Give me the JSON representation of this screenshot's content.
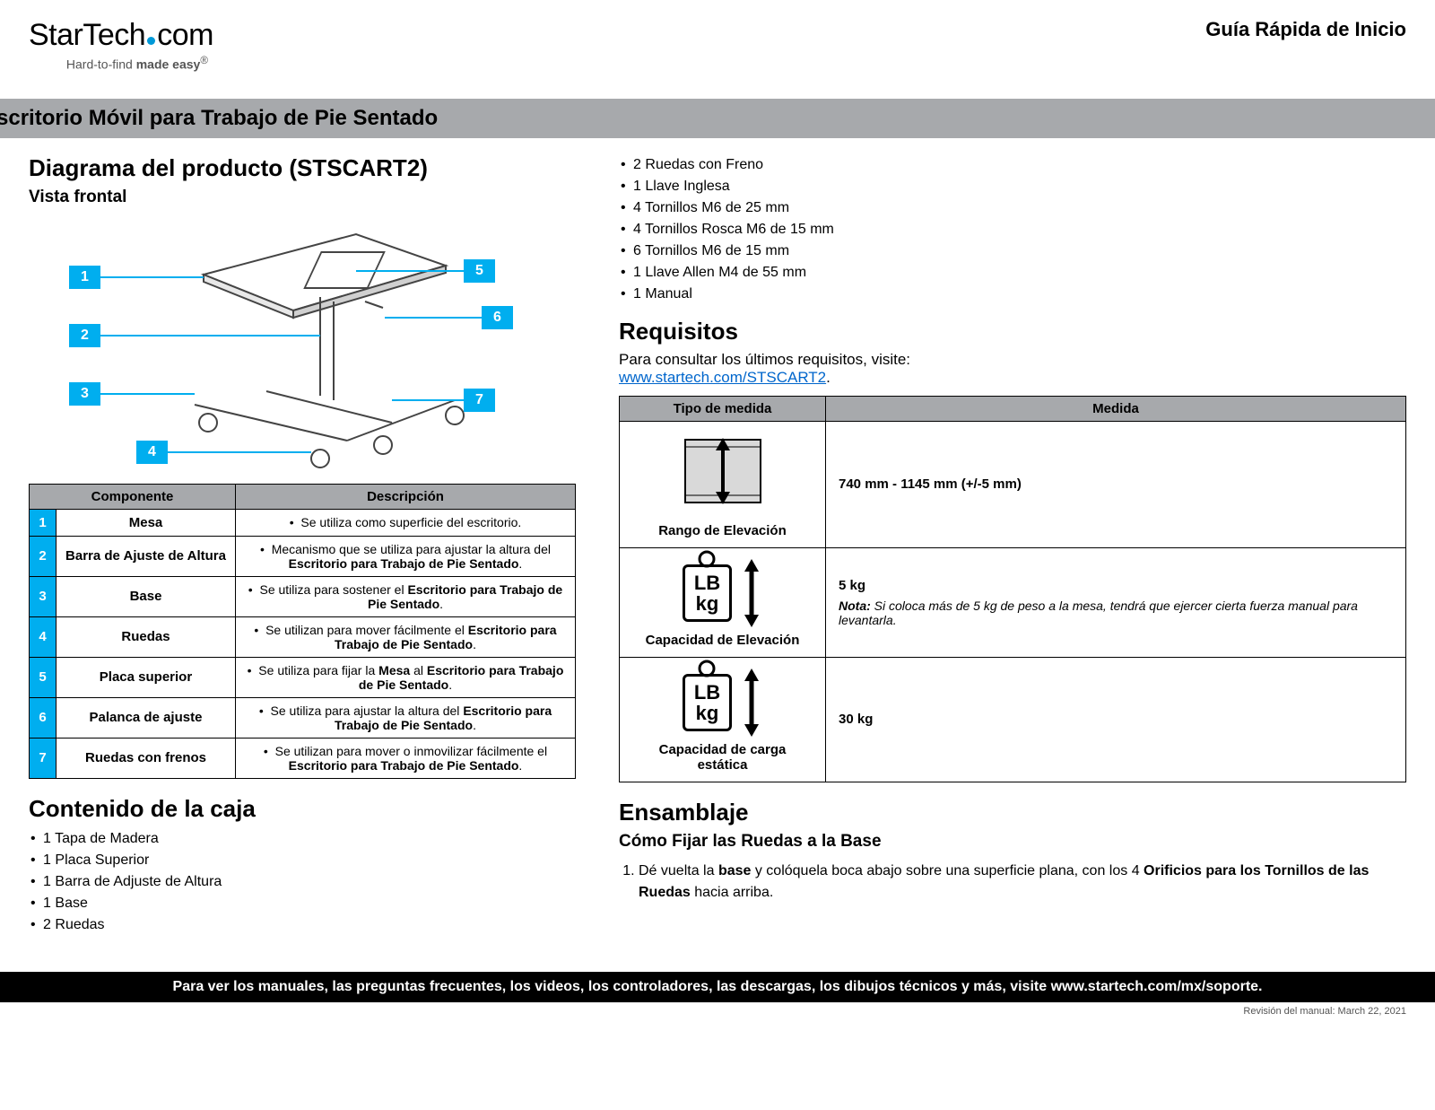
{
  "colors": {
    "accent": "#00aeef",
    "gray_bar": "#a7a9ac",
    "link": "#0066cc",
    "text": "#000000",
    "white": "#ffffff"
  },
  "header": {
    "logo_text_a": "StarTech",
    "logo_text_b": "com",
    "tagline_a": "Hard-to-find ",
    "tagline_b": "made easy",
    "guide_title": "Guía Rápida de Inicio"
  },
  "gray_bar": "Escritorio Móvil para Trabajo de Pie Sentado",
  "left": {
    "h2": "Diagrama del producto (STSCART2)",
    "h3": "Vista frontal",
    "callouts": [
      "1",
      "2",
      "3",
      "4",
      "5",
      "6",
      "7"
    ],
    "table": {
      "th_comp": "Componente",
      "th_desc": "Descripción",
      "rows": [
        {
          "n": "1",
          "name": "Mesa",
          "desc": "Se utiliza como superficie del escritorio."
        },
        {
          "n": "2",
          "name": "Barra de Ajuste de Altura",
          "desc": "Mecanismo que se utiliza para ajustar la altura del <b>Escritorio para Trabajo de Pie Sentado</b>."
        },
        {
          "n": "3",
          "name": "Base",
          "desc": "Se utiliza para sostener el <b>Escritorio para Trabajo de Pie Sentado</b>."
        },
        {
          "n": "4",
          "name": "Ruedas",
          "desc": "Se utilizan para mover fácilmente el <b>Escritorio para Trabajo de Pie Sentado</b>."
        },
        {
          "n": "5",
          "name": "Placa superior",
          "desc": "Se utiliza para fijar la <b>Mesa</b> al <b>Escritorio para Trabajo de Pie Sentado</b>."
        },
        {
          "n": "6",
          "name": "Palanca de ajuste",
          "desc": "Se utiliza para ajustar la altura del <b>Escritorio para Trabajo de Pie Sentado</b>."
        },
        {
          "n": "7",
          "name": "Ruedas con frenos",
          "desc": "Se utilizan para mover o inmovilizar fácilmente el <b>Escritorio para Trabajo de Pie Sentado</b>."
        }
      ]
    },
    "box_h2": "Contenido de la caja",
    "box_items": [
      "1 Tapa de Madera",
      "1 Placa Superior",
      "1 Barra de Adjuste de Altura",
      "1 Base",
      "2 Ruedas"
    ]
  },
  "right": {
    "top_items": [
      "2 Ruedas con Freno",
      "1 Llave Inglesa",
      "4 Tornillos M6 de 25 mm",
      "4 Tornillos Rosca M6 de 15 mm",
      "6 Tornillos M6 de 15 mm",
      "1 Llave Allen M4 de 55 mm",
      "1 Manual"
    ],
    "req_h2": "Requisitos",
    "req_text": "Para consultar los últimos requisitos, visite:",
    "req_link": "www.startech.com/STSCART2",
    "req_table": {
      "th_type": "Tipo de medida",
      "th_meas": "Medida",
      "rows": [
        {
          "label": "Rango de Elevación",
          "value": "740 mm - 1145 mm (+/-5 mm)",
          "icon": "range"
        },
        {
          "label": "Capacidad de Elevación",
          "value": "5 kg",
          "note": "Si coloca más de 5 kg de peso a la mesa, tendrá que ejercer cierta fuerza manual para levantarla.",
          "icon": "lbkg"
        },
        {
          "label": "Capacidad de carga estática",
          "value": "30 kg",
          "icon": "lbkg"
        }
      ]
    },
    "asm_h2": "Ensamblaje",
    "asm_h3": "Cómo Fijar las Ruedas a la Base",
    "asm_step1": "Dé vuelta la <b>base</b> y colóquela boca abajo sobre una superficie plana, con los 4 <b>Orificios para los Tornillos de las Ruedas</b> hacia arriba."
  },
  "footer": "Para ver los manuales, las preguntas frecuentes, los videos, los controladores, las descargas, los dibujos técnicos y más, visite www.startech.com/mx/soporte.",
  "revision": "Revisión del manual: March 22, 2021",
  "note_label": "Nota:"
}
